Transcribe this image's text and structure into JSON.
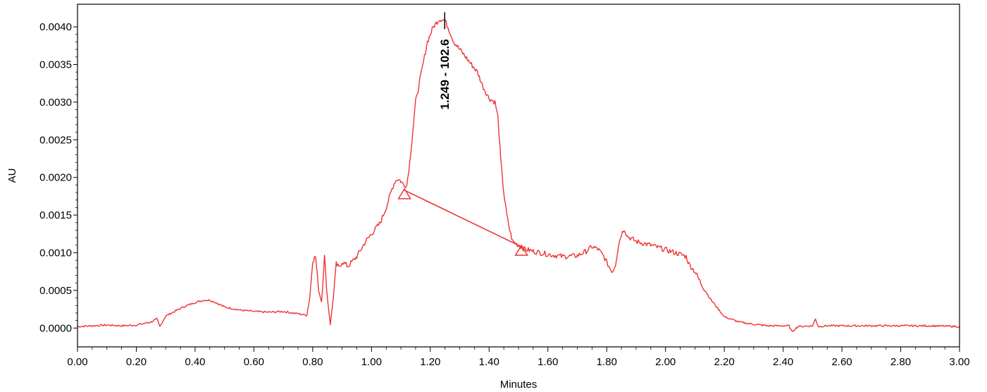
{
  "chart_data": {
    "type": "line",
    "title": "",
    "xlabel": "Minutes",
    "ylabel": "AU",
    "xlim": [
      0.0,
      3.0
    ],
    "ylim": [
      -0.00025,
      0.0043
    ],
    "grid": false,
    "x_ticks": [
      {
        "value": 0.0,
        "label": "0.00"
      },
      {
        "value": 0.2,
        "label": "0.20"
      },
      {
        "value": 0.4,
        "label": "0.40"
      },
      {
        "value": 0.6,
        "label": "0.60"
      },
      {
        "value": 0.8,
        "label": "0.80"
      },
      {
        "value": 1.0,
        "label": "1.00"
      },
      {
        "value": 1.2,
        "label": "1.20"
      },
      {
        "value": 1.4,
        "label": "1.40"
      },
      {
        "value": 1.6,
        "label": "1.60"
      },
      {
        "value": 1.8,
        "label": "1.80"
      },
      {
        "value": 2.0,
        "label": "2.00"
      },
      {
        "value": 2.2,
        "label": "2.20"
      },
      {
        "value": 2.4,
        "label": "2.40"
      },
      {
        "value": 2.6,
        "label": "2.60"
      },
      {
        "value": 2.8,
        "label": "2.80"
      },
      {
        "value": 3.0,
        "label": "3.00"
      }
    ],
    "y_ticks": [
      {
        "value": 0.0,
        "label": "0.0000"
      },
      {
        "value": 0.0005,
        "label": "0.0005"
      },
      {
        "value": 0.001,
        "label": "0.0010"
      },
      {
        "value": 0.0015,
        "label": "0.0015"
      },
      {
        "value": 0.002,
        "label": "0.0020"
      },
      {
        "value": 0.0025,
        "label": "0.0025"
      },
      {
        "value": 0.003,
        "label": "0.0030"
      },
      {
        "value": 0.0035,
        "label": "0.0035"
      },
      {
        "value": 0.004,
        "label": "0.0040"
      }
    ],
    "series": [
      {
        "color": "#ee3333",
        "x": [
          0.0,
          0.05,
          0.1,
          0.15,
          0.2,
          0.25,
          0.27,
          0.28,
          0.3,
          0.33,
          0.36,
          0.4,
          0.43,
          0.45,
          0.47,
          0.5,
          0.55,
          0.6,
          0.65,
          0.7,
          0.75,
          0.78,
          0.79,
          0.8,
          0.81,
          0.82,
          0.83,
          0.84,
          0.85,
          0.86,
          0.87,
          0.88,
          0.89,
          0.9,
          0.92,
          0.95,
          0.98,
          1.0,
          1.03,
          1.05,
          1.07,
          1.08,
          1.09,
          1.1,
          1.11,
          1.12,
          1.13,
          1.14,
          1.15,
          1.17,
          1.19,
          1.21,
          1.23,
          1.24,
          1.25,
          1.26,
          1.28,
          1.3,
          1.33,
          1.36,
          1.38,
          1.4,
          1.42,
          1.43,
          1.44,
          1.45,
          1.46,
          1.47,
          1.48,
          1.5,
          1.52,
          1.55,
          1.6,
          1.65,
          1.7,
          1.73,
          1.75,
          1.77,
          1.79,
          1.81,
          1.82,
          1.83,
          1.84,
          1.85,
          1.86,
          1.87,
          1.9,
          1.95,
          2.0,
          2.05,
          2.07,
          2.08,
          2.1,
          2.12,
          2.15,
          2.18,
          2.2,
          2.25,
          2.3,
          2.35,
          2.4,
          2.42,
          2.43,
          2.45,
          2.5,
          2.51,
          2.52,
          2.55,
          2.6,
          2.7,
          2.8,
          2.9,
          3.0
        ],
        "y": [
          2e-05,
          3e-05,
          4e-05,
          3e-05,
          4e-05,
          8e-05,
          0.00012,
          2e-05,
          0.00016,
          0.00022,
          0.00028,
          0.00034,
          0.00037,
          0.00037,
          0.00034,
          0.00028,
          0.00024,
          0.00022,
          0.00021,
          0.00022,
          0.00019,
          0.00017,
          0.0004,
          0.0009,
          0.00095,
          0.0005,
          0.00035,
          0.00095,
          0.0004,
          5e-05,
          0.0004,
          0.00085,
          0.0008,
          0.00088,
          0.00082,
          0.00095,
          0.00115,
          0.00125,
          0.0014,
          0.0016,
          0.00185,
          0.00195,
          0.00198,
          0.00195,
          0.0019,
          0.0019,
          0.0022,
          0.0026,
          0.003,
          0.0034,
          0.0038,
          0.004,
          0.0041,
          0.0041,
          0.00408,
          0.004,
          0.0038,
          0.0037,
          0.00355,
          0.0034,
          0.0032,
          0.00305,
          0.003,
          0.0028,
          0.0022,
          0.0018,
          0.0015,
          0.0013,
          0.00115,
          0.0011,
          0.00105,
          0.00102,
          0.00098,
          0.00095,
          0.00096,
          0.00102,
          0.00108,
          0.00105,
          0.00095,
          0.0008,
          0.00075,
          0.00085,
          0.0011,
          0.00125,
          0.00132,
          0.00122,
          0.00115,
          0.0011,
          0.00104,
          0.00098,
          0.00095,
          0.00085,
          0.00075,
          0.0006,
          0.0004,
          0.00025,
          0.00015,
          8e-05,
          5e-05,
          3e-05,
          3e-05,
          3e-05,
          -5e-05,
          2e-05,
          3e-05,
          0.00012,
          2e-05,
          3e-05,
          3e-05,
          3e-05,
          3e-05,
          3e-05,
          2e-05
        ]
      }
    ],
    "baseline": {
      "color": "#ee3333",
      "start": {
        "x": 1.112,
        "y": 0.00183
      },
      "end": {
        "x": 1.51,
        "y": 0.00108
      }
    },
    "peak": {
      "x": 1.249,
      "y": 0.0041,
      "label": "1.249 - 102.6"
    }
  }
}
